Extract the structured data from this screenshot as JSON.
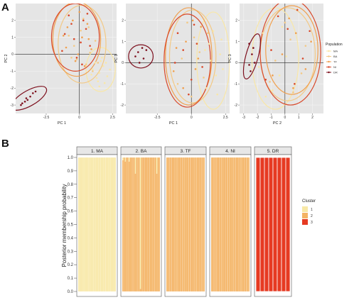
{
  "panels": {
    "a": "A",
    "b": "B"
  },
  "colors": {
    "MA": "#f9e7a6",
    "BA": "#f3c985",
    "TF": "#f0a04f",
    "NI": "#d8482a",
    "DR": "#7d0f1d",
    "cluster1": "#f8e8a6",
    "cluster2": "#f4b363",
    "cluster3": "#e63a22",
    "pca_bg": "#e5e5e5",
    "strip_bg": "#e7e7e7"
  },
  "chart_data": [
    {
      "type": "scatter",
      "xlabel": "PC 1",
      "ylabel": "PC 2",
      "xlim": [
        -4.8,
        2.8
      ],
      "ylim": [
        -3.5,
        3.0
      ],
      "xticks": [
        "-2.5",
        "0",
        "2.5"
      ],
      "xtick_values": [
        -2.5,
        0,
        2.5
      ],
      "yticks": [
        "-3",
        "-2",
        "-1",
        "0",
        "1",
        "2"
      ],
      "ytick_values": [
        -3,
        -2,
        -1,
        0,
        1,
        2
      ],
      "series": [
        {
          "name": "MA",
          "ellipse": {
            "cx": 1.6,
            "cy": -0.9,
            "rx": 1.1,
            "ry": 1.3,
            "angle": 0
          },
          "points": [
            [
              1.2,
              -0.5
            ],
            [
              1.5,
              -1.1
            ],
            [
              1.8,
              -0.7
            ],
            [
              2.1,
              -1.3
            ],
            [
              1.4,
              -1.6
            ],
            [
              1.0,
              -0.9
            ],
            [
              1.7,
              -0.2
            ],
            [
              2.3,
              -0.9
            ],
            [
              1.3,
              -1.4
            ],
            [
              1.9,
              -1.7
            ],
            [
              1.6,
              -0.4
            ],
            [
              0.9,
              -1.2
            ],
            [
              2.0,
              -0.5
            ],
            [
              1.5,
              -1.9
            ]
          ]
        },
        {
          "name": "BA",
          "ellipse": {
            "cx": 0.2,
            "cy": 0.6,
            "rx": 1.8,
            "ry": 2.3,
            "angle": 0
          },
          "points": [
            [
              0.1,
              1.4
            ],
            [
              -0.4,
              0.5
            ],
            [
              0.8,
              0.1
            ],
            [
              -0.8,
              1.1
            ],
            [
              0.5,
              -0.6
            ],
            [
              1.2,
              0.8
            ],
            [
              -0.2,
              -0.3
            ],
            [
              0.3,
              2.1
            ],
            [
              1.0,
              -1.0
            ],
            [
              -0.6,
              -0.2
            ],
            [
              0.7,
              1.6
            ],
            [
              1.4,
              -0.5
            ]
          ]
        },
        {
          "name": "TF",
          "ellipse": {
            "cx": -0.2,
            "cy": 0.9,
            "rx": 1.8,
            "ry": 2.2,
            "angle": 0
          },
          "points": [
            [
              -0.5,
              2.0
            ],
            [
              0.2,
              1.0
            ],
            [
              -1.0,
              0.4
            ],
            [
              0.6,
              1.8
            ],
            [
              -0.3,
              -0.4
            ],
            [
              0.9,
              0.3
            ],
            [
              -0.9,
              1.6
            ],
            [
              0.0,
              2.5
            ],
            [
              0.4,
              -0.7
            ],
            [
              -1.2,
              1.1
            ],
            [
              0.7,
              0.9
            ],
            [
              -0.1,
              0.0
            ]
          ]
        },
        {
          "name": "NI",
          "ellipse": {
            "cx": -0.3,
            "cy": 1.0,
            "rx": 1.8,
            "ry": 2.0,
            "angle": 0
          },
          "points": [
            [
              -0.6,
              1.8
            ],
            [
              0.1,
              0.7
            ],
            [
              -1.1,
              1.2
            ],
            [
              0.5,
              1.5
            ],
            [
              -0.2,
              -0.2
            ],
            [
              0.8,
              0.5
            ],
            [
              -0.8,
              2.3
            ],
            [
              0.3,
              2.0
            ],
            [
              -1.3,
              0.2
            ],
            [
              0.2,
              -0.6
            ],
            [
              -0.4,
              0.9
            ],
            [
              0.6,
              2.4
            ]
          ]
        },
        {
          "name": "DR",
          "ellipse": {
            "cx": -3.8,
            "cy": -2.6,
            "rx": 1.5,
            "ry": 0.45,
            "angle": -30
          },
          "points": [
            [
              -4.3,
              -2.9
            ],
            [
              -4.0,
              -2.6
            ],
            [
              -3.7,
              -2.5
            ],
            [
              -3.5,
              -2.3
            ],
            [
              -4.1,
              -2.8
            ],
            [
              -3.3,
              -2.2
            ],
            [
              -3.9,
              -2.7
            ],
            [
              -4.4,
              -3.0
            ]
          ]
        }
      ]
    },
    {
      "type": "scatter",
      "xlabel": "PC 1",
      "ylabel": "PC 3",
      "xlim": [
        -4.8,
        2.8
      ],
      "ylim": [
        -2.4,
        2.8
      ],
      "xticks": [
        "-2.5",
        "0",
        "2.5"
      ],
      "xtick_values": [
        -2.5,
        0,
        2.5
      ],
      "yticks": [
        "-2",
        "-1",
        "0",
        "1",
        "2"
      ],
      "ytick_values": [
        -2,
        -1,
        0,
        1,
        2
      ],
      "series": [
        {
          "name": "MA",
          "ellipse": {
            "cx": 1.6,
            "cy": 0.1,
            "rx": 1.2,
            "ry": 2.3,
            "angle": 0
          },
          "points": [
            [
              1.3,
              0.9
            ],
            [
              1.8,
              -0.6
            ],
            [
              2.1,
              0.4
            ],
            [
              1.1,
              -1.2
            ],
            [
              1.6,
              1.5
            ],
            [
              2.3,
              -0.3
            ],
            [
              1.4,
              0.1
            ],
            [
              1.9,
              -1.5
            ],
            [
              1.0,
              0.6
            ],
            [
              2.2,
              1.1
            ]
          ]
        },
        {
          "name": "BA",
          "ellipse": {
            "cx": 0.1,
            "cy": 0.3,
            "rx": 1.7,
            "ry": 2.2,
            "angle": 0
          },
          "points": [
            [
              0.2,
              1.2
            ],
            [
              -0.7,
              0.2
            ],
            [
              0.9,
              -0.7
            ],
            [
              -0.3,
              1.9
            ],
            [
              0.6,
              0.5
            ],
            [
              -1.0,
              -1.0
            ],
            [
              1.2,
              1.4
            ],
            [
              0.0,
              -1.6
            ]
          ]
        },
        {
          "name": "TF",
          "ellipse": {
            "cx": -0.2,
            "cy": 0.3,
            "rx": 1.7,
            "ry": 2.3,
            "angle": 0
          },
          "points": [
            [
              -0.4,
              1.0
            ],
            [
              0.3,
              -0.3
            ],
            [
              -1.1,
              0.7
            ],
            [
              0.7,
              1.7
            ],
            [
              -0.6,
              -1.2
            ],
            [
              0.5,
              0.2
            ],
            [
              -1.3,
              -0.4
            ],
            [
              0.1,
              2.0
            ]
          ]
        },
        {
          "name": "NI",
          "ellipse": {
            "cx": -0.3,
            "cy": 0.1,
            "rx": 1.7,
            "ry": 2.2,
            "angle": 0
          },
          "points": [
            [
              -0.6,
              0.6
            ],
            [
              0.0,
              -0.8
            ],
            [
              -1.0,
              1.4
            ],
            [
              0.4,
              0.9
            ],
            [
              -0.2,
              -1.5
            ],
            [
              0.8,
              -0.2
            ],
            [
              -1.2,
              0.0
            ],
            [
              0.2,
              1.8
            ]
          ]
        },
        {
          "name": "DR",
          "ellipse": {
            "cx": -3.7,
            "cy": 0.3,
            "rx": 0.9,
            "ry": 0.55,
            "angle": 0
          },
          "points": [
            [
              -3.9,
              0.5
            ],
            [
              -3.5,
              0.2
            ],
            [
              -3.8,
              0.0
            ],
            [
              -3.3,
              0.6
            ],
            [
              -4.1,
              0.3
            ],
            [
              -3.6,
              0.7
            ]
          ]
        }
      ]
    },
    {
      "type": "scatter",
      "xlabel": "PC 2",
      "ylabel": "PC 3",
      "xlim": [
        -3.3,
        2.8
      ],
      "ylim": [
        -2.4,
        2.8
      ],
      "xticks": [
        "-3",
        "-2",
        "-1",
        "0",
        "1",
        "2"
      ],
      "xtick_values": [
        -3,
        -2,
        -1,
        0,
        1,
        2
      ],
      "yticks": [
        "-2",
        "-1",
        "0",
        "1",
        "2"
      ],
      "ytick_values": [
        -2,
        -1,
        0,
        1,
        2
      ],
      "series": [
        {
          "name": "MA",
          "ellipse": {
            "cx": -0.7,
            "cy": 0.2,
            "rx": 1.7,
            "ry": 2.4,
            "angle": 0
          },
          "points": [
            [
              -1.2,
              0.8
            ],
            [
              -0.4,
              -0.6
            ],
            [
              -1.6,
              1.4
            ],
            [
              0.1,
              0.3
            ],
            [
              -0.9,
              -1.3
            ],
            [
              -1.9,
              -0.2
            ],
            [
              -0.2,
              1.7
            ],
            [
              -1.4,
              -1.6
            ]
          ]
        },
        {
          "name": "BA",
          "ellipse": {
            "cx": 0.2,
            "cy": 0.4,
            "rx": 2.0,
            "ry": 2.2,
            "angle": 0
          },
          "points": [
            [
              0.4,
              1.1
            ],
            [
              -0.7,
              0.1
            ],
            [
              1.2,
              -0.5
            ],
            [
              0.0,
              1.9
            ],
            [
              -1.1,
              -0.9
            ],
            [
              1.5,
              0.8
            ],
            [
              0.6,
              -1.4
            ]
          ]
        },
        {
          "name": "TF",
          "ellipse": {
            "cx": 0.5,
            "cy": 0.6,
            "rx": 1.9,
            "ry": 2.1,
            "angle": 0
          },
          "points": [
            [
              0.8,
              1.4
            ],
            [
              -0.2,
              0.4
            ],
            [
              1.5,
              -0.3
            ],
            [
              0.3,
              2.1
            ],
            [
              -0.9,
              -0.6
            ],
            [
              1.9,
              1.0
            ],
            [
              0.6,
              -1.2
            ]
          ]
        },
        {
          "name": "NI",
          "ellipse": {
            "cx": 0.4,
            "cy": 0.5,
            "rx": 2.2,
            "ry": 2.5,
            "angle": 0
          },
          "points": [
            [
              0.2,
              1.6
            ],
            [
              -1.0,
              0.6
            ],
            [
              1.3,
              0.2
            ],
            [
              0.7,
              -1.0
            ],
            [
              -0.5,
              2.2
            ],
            [
              1.8,
              1.5
            ],
            [
              -1.4,
              -0.8
            ],
            [
              0.9,
              2.5
            ]
          ]
        },
        {
          "name": "DR",
          "ellipse": {
            "cx": -2.4,
            "cy": 0.3,
            "rx": 0.45,
            "ry": 1.1,
            "angle": 15
          },
          "points": [
            [
              -2.6,
              0.9
            ],
            [
              -2.4,
              0.4
            ],
            [
              -2.2,
              0.0
            ],
            [
              -2.5,
              -0.4
            ],
            [
              -2.3,
              0.7
            ],
            [
              -2.6,
              -0.1
            ]
          ]
        }
      ]
    },
    {
      "type": "bar",
      "stacked": true,
      "ylabel": "Posterior membership probability",
      "ylim": [
        0,
        1
      ],
      "yticks": [
        "0.0",
        "0.1",
        "0.2",
        "0.3",
        "0.4",
        "0.5",
        "0.6",
        "0.7",
        "0.8",
        "0.9",
        "1.0"
      ],
      "ytick_values": [
        0,
        0.1,
        0.2,
        0.3,
        0.4,
        0.5,
        0.6,
        0.7,
        0.8,
        0.9,
        1.0
      ],
      "facets": [
        {
          "label": "1. MA",
          "n": 30,
          "dominant": 1,
          "overrides": []
        },
        {
          "label": "2. BA",
          "n": 30,
          "dominant": 2,
          "overrides": [
            {
              "index": 0,
              "cluster1": 0.02
            },
            {
              "index": 2,
              "cluster1": 0.03
            },
            {
              "index": 5,
              "cluster1": 0.03
            },
            {
              "index": 10,
              "cluster1": 0.12
            },
            {
              "index": 14,
              "cluster1": 0.98
            },
            {
              "index": 27,
              "cluster1": 0.12
            }
          ]
        },
        {
          "label": "3. TF",
          "n": 34,
          "dominant": 2,
          "overrides": []
        },
        {
          "label": "4. NI",
          "n": 34,
          "dominant": 2,
          "overrides": []
        },
        {
          "label": "5. DR",
          "n": 8,
          "dominant": 3,
          "overrides": []
        }
      ]
    }
  ],
  "legend_population": {
    "title": "Population",
    "entries": [
      "MA",
      "BA",
      "TF",
      "NI",
      "DR"
    ]
  },
  "legend_cluster": {
    "title": "Cluster",
    "entries": [
      "1",
      "2",
      "3"
    ]
  }
}
